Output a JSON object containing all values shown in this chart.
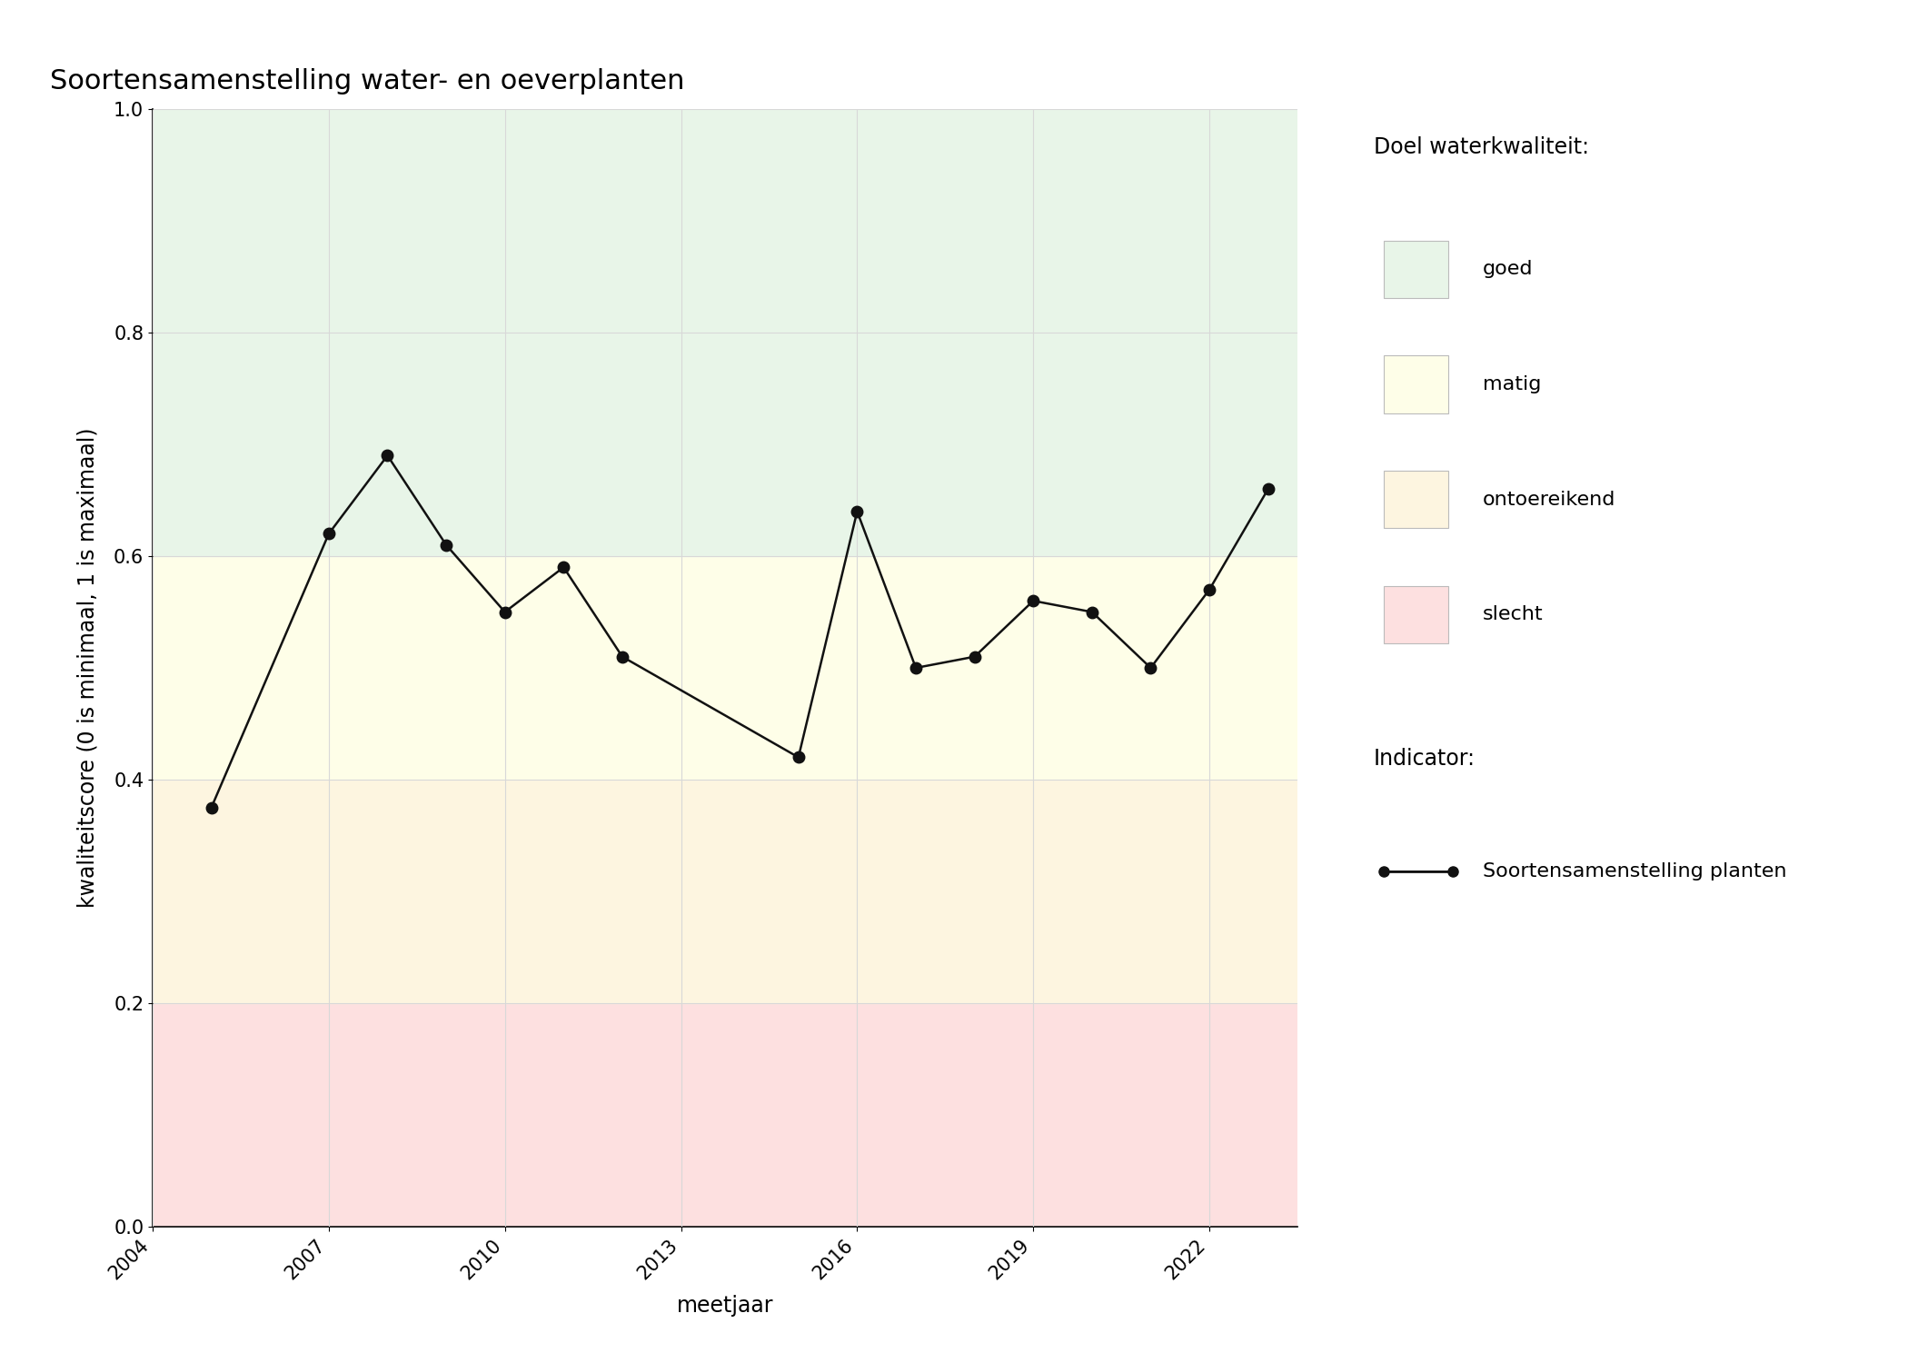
{
  "title": "Soortensamenstelling water- en oeverplanten",
  "xlabel": "meetjaar",
  "ylabel": "kwaliteitscore (0 is minimaal, 1 is maximaal)",
  "years": [
    2005,
    2007,
    2008,
    2009,
    2010,
    2011,
    2012,
    2015,
    2016,
    2017,
    2018,
    2019,
    2020,
    2021,
    2022,
    2023
  ],
  "values": [
    0.375,
    0.62,
    0.69,
    0.61,
    0.55,
    0.59,
    0.51,
    0.42,
    0.64,
    0.5,
    0.51,
    0.56,
    0.55,
    0.5,
    0.57,
    0.66
  ],
  "xlim": [
    2004,
    2023.5
  ],
  "ylim": [
    0.0,
    1.0
  ],
  "xticks": [
    2004,
    2007,
    2010,
    2013,
    2016,
    2019,
    2022
  ],
  "yticks": [
    0.0,
    0.2,
    0.4,
    0.6,
    0.8,
    1.0
  ],
  "bg_colors": {
    "goed": "#e8f5e8",
    "matig": "#fefee8",
    "ontoereikend": "#fdf5e0",
    "slecht": "#fde0e0"
  },
  "bg_ranges": {
    "goed": [
      0.6,
      1.0
    ],
    "matig": [
      0.4,
      0.6
    ],
    "ontoereikend": [
      0.2,
      0.4
    ],
    "slecht": [
      0.0,
      0.2
    ]
  },
  "legend_title_1": "Doel waterkwaliteit:",
  "legend_title_2": "Indicator:",
  "legend_label": "Soortensamenstelling planten",
  "line_color": "#111111",
  "marker_color": "#111111",
  "grid_color": "#d8d8d8",
  "title_fontsize": 22,
  "axis_label_fontsize": 17,
  "tick_fontsize": 15,
  "legend_fontsize": 16,
  "legend_title_fontsize": 17
}
